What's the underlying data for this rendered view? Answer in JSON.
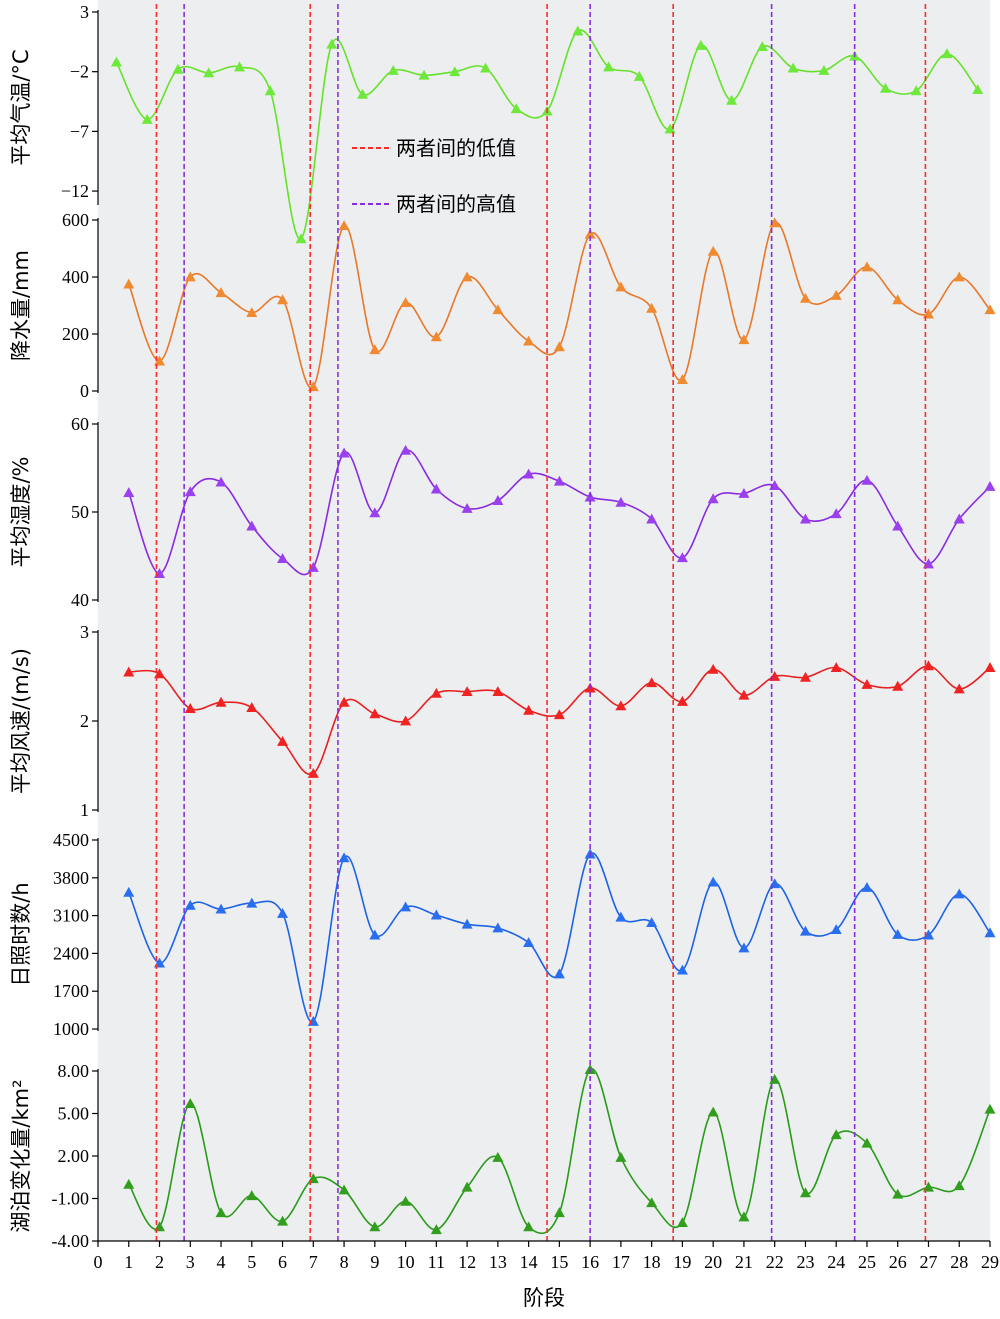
{
  "chart_data": {
    "type": "line",
    "xlabel": "阶段",
    "x_ticks": [
      "0",
      "1",
      "2",
      "3",
      "4",
      "5",
      "6",
      "7",
      "8",
      "9",
      "10",
      "11",
      "12",
      "13",
      "14",
      "15",
      "16",
      "17",
      "18",
      "19",
      "20",
      "21",
      "22",
      "23",
      "24",
      "25",
      "26",
      "27",
      "28",
      "29"
    ],
    "xlim": [
      0,
      29
    ],
    "grid": false,
    "legend": {
      "placement": "top-center",
      "entries": [
        {
          "label": "两者间的低值",
          "color": "#ff2a2a"
        },
        {
          "label": "两者间的高值",
          "color": "#8a2be2"
        }
      ]
    },
    "low_lines_x": [
      1.9,
      6.9,
      14.6,
      18.7,
      26.9
    ],
    "high_lines_x": [
      2.8,
      7.8,
      16.0,
      21.9,
      24.6
    ],
    "colors": {
      "background": "#eceef0",
      "low_line": "#ff2a2a",
      "high_line": "#8a2be2"
    },
    "panels": [
      {
        "ylabel": "平均气温/°C",
        "ylim": [
          -13,
          3
        ],
        "yticks": [
          3,
          -2,
          -7,
          -12
        ],
        "tick_labels": [
          "3",
          "−2",
          "−7",
          "−12"
        ],
        "color": "#66e22a",
        "marker_color": "#6ee83a",
        "x": [
          0.6,
          1.6,
          2.6,
          3.6,
          4.6,
          5.6,
          6.6,
          7.6,
          8.6,
          9.6,
          10.6,
          11.6,
          12.6,
          13.6,
          14.6,
          15.6,
          16.6,
          17.6,
          18.6,
          19.6,
          20.6,
          21.6,
          22.6,
          23.6,
          24.6,
          25.6,
          26.6,
          27.6,
          28.6
        ],
        "values": [
          -1.2,
          -6.0,
          -1.8,
          -2.1,
          -1.6,
          -3.6,
          -16.0,
          0.3,
          -3.9,
          -1.9,
          -2.3,
          -2.0,
          -1.7,
          -5.1,
          -5.3,
          1.4,
          -1.6,
          -2.4,
          -6.8,
          0.2,
          -4.4,
          0.1,
          -1.7,
          -1.9,
          -0.7,
          -3.4,
          -3.6,
          -0.5,
          -3.5
        ]
      },
      {
        "ylabel": "降水量/mm",
        "ylim": [
          0,
          600
        ],
        "yticks": [
          600,
          400,
          200,
          0
        ],
        "tick_labels": [
          "600",
          "400",
          "200",
          "0"
        ],
        "color": "#e8782a",
        "marker_color": "#f08a30",
        "x": [
          1,
          2,
          3,
          4,
          5,
          6,
          7,
          8,
          9,
          10,
          11,
          12,
          13,
          14,
          15,
          16,
          17,
          18,
          19,
          20,
          21,
          22,
          23,
          24,
          25,
          26,
          27,
          28,
          29
        ],
        "values": [
          375,
          105,
          400,
          345,
          275,
          320,
          15,
          580,
          145,
          310,
          190,
          400,
          285,
          175,
          155,
          550,
          365,
          290,
          40,
          490,
          180,
          590,
          325,
          335,
          435,
          320,
          270,
          400,
          285
        ]
      },
      {
        "ylabel": "平均湿度/%",
        "ylim": [
          40,
          60
        ],
        "yticks": [
          60,
          50,
          40
        ],
        "tick_labels": [
          "60",
          "50",
          "40"
        ],
        "color": "#8a2be2",
        "marker_color": "#9a40ee",
        "x": [
          1,
          2,
          3,
          4,
          5,
          6,
          7,
          8,
          9,
          10,
          11,
          12,
          13,
          14,
          15,
          16,
          17,
          18,
          19,
          20,
          21,
          22,
          23,
          24,
          25,
          26,
          27,
          28,
          29
        ],
        "values": [
          52.2,
          43.0,
          52.3,
          53.4,
          48.4,
          44.7,
          43.7,
          56.7,
          49.9,
          57.0,
          52.6,
          50.4,
          51.3,
          54.3,
          53.5,
          51.7,
          51.1,
          49.2,
          44.8,
          51.5,
          52.1,
          53.0,
          49.2,
          49.8,
          53.6,
          48.4,
          44.1,
          49.2,
          52.9
        ]
      },
      {
        "ylabel": "平均风速/(m/s)",
        "ylim": [
          1,
          3
        ],
        "yticks": [
          3,
          2,
          1
        ],
        "tick_labels": [
          "3",
          "2",
          "1"
        ],
        "color": "#e82020",
        "marker_color": "#f02222",
        "x": [
          1,
          2,
          3,
          4,
          5,
          6,
          7,
          8,
          9,
          10,
          11,
          12,
          13,
          14,
          15,
          16,
          17,
          18,
          19,
          20,
          21,
          22,
          23,
          24,
          25,
          26,
          27,
          28,
          29
        ],
        "values": [
          2.55,
          2.53,
          2.14,
          2.21,
          2.15,
          1.77,
          1.41,
          2.21,
          2.08,
          2.0,
          2.31,
          2.33,
          2.33,
          2.12,
          2.07,
          2.37,
          2.17,
          2.43,
          2.22,
          2.58,
          2.29,
          2.5,
          2.49,
          2.6,
          2.41,
          2.39,
          2.62,
          2.36,
          2.6
        ]
      },
      {
        "ylabel": "日照时数/h",
        "ylim": [
          1000,
          4500
        ],
        "yticks": [
          4500,
          3800,
          3100,
          2400,
          1700,
          1000
        ],
        "tick_labels": [
          "4500",
          "3800",
          "3100",
          "2400",
          "1700",
          "1000"
        ],
        "color": "#1e62e6",
        "marker_color": "#2a6ef0",
        "x": [
          1,
          2,
          3,
          4,
          5,
          6,
          7,
          8,
          9,
          10,
          11,
          12,
          13,
          14,
          15,
          16,
          17,
          18,
          19,
          20,
          21,
          22,
          23,
          24,
          25,
          26,
          27,
          28,
          29
        ],
        "values": [
          3530,
          2220,
          3290,
          3220,
          3330,
          3140,
          1140,
          4170,
          2740,
          3260,
          3110,
          2940,
          2870,
          2600,
          2020,
          4240,
          3070,
          2970,
          2090,
          3720,
          2500,
          3690,
          2810,
          2840,
          3620,
          2750,
          2740,
          3500,
          2780
        ]
      },
      {
        "ylabel": "湖泊变化量/km²",
        "ylim": [
          -4,
          8
        ],
        "yticks": [
          8,
          5,
          2,
          -1,
          -4
        ],
        "tick_labels": [
          "8.00",
          "5.00",
          "2.00",
          "-1.00",
          "-4.00"
        ],
        "color": "#2a9a1a",
        "marker_color": "#329e1e",
        "x": [
          1,
          2,
          3,
          4,
          5,
          6,
          7,
          8,
          9,
          10,
          11,
          12,
          13,
          14,
          15,
          16,
          17,
          18,
          19,
          20,
          21,
          22,
          23,
          24,
          25,
          26,
          27,
          28,
          29
        ],
        "values": [
          0.0,
          -3.0,
          5.7,
          -2.0,
          -0.8,
          -2.6,
          0.4,
          -0.4,
          -3.0,
          -1.2,
          -3.2,
          -0.2,
          1.9,
          -3.0,
          -2.0,
          8.1,
          1.9,
          -1.3,
          -2.7,
          5.1,
          -2.3,
          7.4,
          -0.6,
          3.5,
          2.9,
          -0.7,
          -0.2,
          -0.1,
          5.3
        ]
      }
    ]
  }
}
